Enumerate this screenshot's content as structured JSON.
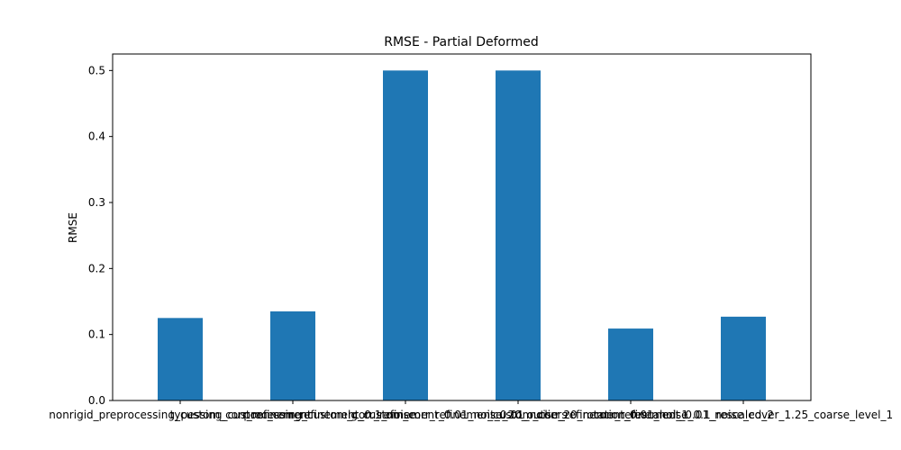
{
  "chart_data": {
    "type": "bar",
    "title": "RMSE - Partial Deformed",
    "xlabel": "",
    "ylabel": "RMSE",
    "ylim": [
      0,
      0.525
    ],
    "yticks": [
      "0.0",
      "0.1",
      "0.2",
      "0.3",
      "0.4",
      "0.5"
    ],
    "bar_color": "#1f77b4",
    "grid": false,
    "categories": [
      "nonrigid_preprocessing_custom_corr_refinement",
      "typessing_custom_corr_refinement_0.1_noise",
      "processing_custom_corr_refinement_0.01_noise_20_outliers",
      "lg_custom_corr_refinement_0.01_noise_20_rotation_rescaled_1",
      "_custom_corr_refinement_0.01_noise_0.1_rescaled_2",
      "corr_refinement_0.01_noise_cover_1.25_coarse_level_1"
    ],
    "values": [
      0.125,
      0.135,
      0.5,
      0.5,
      0.109,
      0.127
    ]
  }
}
